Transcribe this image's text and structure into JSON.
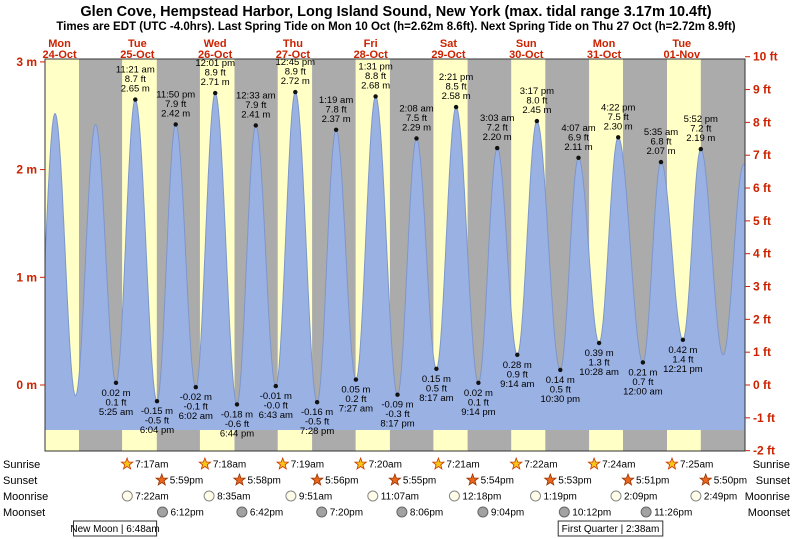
{
  "title": "Glen Cove, Hempstead Harbor, Long Island Sound, New York (max. tidal range 3.17m 10.4ft)",
  "subtitle": "Times are EDT (UTC -4.0hrs). Last Spring Tide on Mon 10 Oct (h=2.62m 8.6ft). Next Spring Tide on Thu 27 Oct (h=2.72m 8.9ft)",
  "colors": {
    "plot_bg": "#ababab",
    "daylight": "#ffffc6",
    "tide_fill": "#9ab1e4",
    "tide_stroke": "#7d97cb",
    "axis_text": "#cc2200",
    "day_text": "#cc2200",
    "sunrise_star": "#f6c51a",
    "sunrise_star_stroke": "#cc3300",
    "sunset_star": "#e8671c",
    "sunset_star_stroke": "#993300",
    "moonrise_fill": "#fffce8",
    "moonset_fill": "#a2a2a2"
  },
  "chart_data": {
    "type": "area",
    "x_axis": {
      "start_hour": 7.5,
      "end_hour": 223.5,
      "origin": "Mon 24-Oct 00:00 EDT"
    },
    "y_axis_left": {
      "unit": "m",
      "ticks": [
        0,
        1,
        2,
        3
      ]
    },
    "y_axis_right": {
      "unit": "ft",
      "ticks": [
        -2,
        -1,
        0,
        1,
        2,
        3,
        4,
        5,
        6,
        7,
        8,
        9,
        10
      ]
    },
    "days": [
      {
        "name": "Mon",
        "date": "24-Oct",
        "noon_hour": 12
      },
      {
        "name": "Tue",
        "date": "25-Oct",
        "noon_hour": 36
      },
      {
        "name": "Wed",
        "date": "26-Oct",
        "noon_hour": 60
      },
      {
        "name": "Thu",
        "date": "27-Oct",
        "noon_hour": 84
      },
      {
        "name": "Fri",
        "date": "28-Oct",
        "noon_hour": 108
      },
      {
        "name": "Sat",
        "date": "29-Oct",
        "noon_hour": 132
      },
      {
        "name": "Sun",
        "date": "30-Oct",
        "noon_hour": 156
      },
      {
        "name": "Mon",
        "date": "31-Oct",
        "noon_hour": 180
      },
      {
        "name": "Tue",
        "date": "01-Nov",
        "noon_hour": 204
      }
    ],
    "daylight_bands": [
      [
        7.5,
        18.0
      ],
      [
        31.283,
        41.983
      ],
      [
        55.3,
        65.967
      ],
      [
        79.317,
        89.933
      ],
      [
        103.333,
        113.917
      ],
      [
        127.35,
        137.9
      ],
      [
        151.367,
        161.883
      ],
      [
        175.4,
        185.85
      ],
      [
        199.417,
        209.833
      ],
      [
        223.43,
        223.5
      ]
    ],
    "tide_extremes": [
      {
        "hour": 29.417,
        "height_m": 0.02,
        "type": "low",
        "lines": [
          "0.02 m",
          "0.1 ft",
          "5:25 am"
        ]
      },
      {
        "hour": 35.35,
        "height_m": 2.65,
        "type": "high",
        "lines": [
          "11:21 am",
          "8.7 ft",
          "2.65 m"
        ]
      },
      {
        "hour": 42.067,
        "height_m": -0.15,
        "type": "low",
        "lines": [
          "-0.15 m",
          "-0.5 ft",
          "6:04 pm"
        ]
      },
      {
        "hour": 47.833,
        "height_m": 2.42,
        "type": "high",
        "lines": [
          "11:50 pm",
          "7.9 ft",
          "2.42 m"
        ]
      },
      {
        "hour": 54.033,
        "height_m": -0.02,
        "type": "low",
        "lines": [
          "-0.02 m",
          "-0.1 ft",
          "6:02 am"
        ]
      },
      {
        "hour": 60.017,
        "height_m": 2.71,
        "type": "high",
        "lines": [
          "12:01 pm",
          "8.9 ft",
          "2.71 m"
        ]
      },
      {
        "hour": 66.733,
        "height_m": -0.18,
        "type": "low",
        "lines": [
          "-0.18 m",
          "-0.6 ft",
          "6:44 pm"
        ]
      },
      {
        "hour": 72.55,
        "height_m": 2.41,
        "type": "high",
        "lines": [
          "12:33 am",
          "7.9 ft",
          "2.41 m"
        ]
      },
      {
        "hour": 78.717,
        "height_m": -0.01,
        "type": "low",
        "lines": [
          "-0.01 m",
          "-0.0 ft",
          "6:43 am"
        ]
      },
      {
        "hour": 84.75,
        "height_m": 2.72,
        "type": "high",
        "lines": [
          "12:45 pm",
          "8.9 ft",
          "2.72 m"
        ]
      },
      {
        "hour": 91.467,
        "height_m": -0.16,
        "type": "low",
        "lines": [
          "-0.16 m",
          "-0.5 ft",
          "7:28 pm"
        ]
      },
      {
        "hour": 97.317,
        "height_m": 2.37,
        "type": "high",
        "lines": [
          "1:19 am",
          "7.8 ft",
          "2.37 m"
        ]
      },
      {
        "hour": 103.45,
        "height_m": 0.05,
        "type": "low",
        "lines": [
          "0.05 m",
          "0.2 ft",
          "7:27 am"
        ]
      },
      {
        "hour": 109.517,
        "height_m": 2.68,
        "type": "high",
        "lines": [
          "1:31 pm",
          "8.8 ft",
          "2.68 m"
        ]
      },
      {
        "hour": 116.283,
        "height_m": -0.09,
        "type": "low",
        "lines": [
          "-0.09 m",
          "-0.3 ft",
          "8:17 pm"
        ]
      },
      {
        "hour": 122.133,
        "height_m": 2.29,
        "type": "high",
        "lines": [
          "2:08 am",
          "7.5 ft",
          "2.29 m"
        ]
      },
      {
        "hour": 128.283,
        "height_m": 0.15,
        "type": "low",
        "lines": [
          "0.15 m",
          "0.5 ft",
          "8:17 am"
        ]
      },
      {
        "hour": 134.35,
        "height_m": 2.58,
        "type": "high",
        "lines": [
          "2:21 pm",
          "8.5 ft",
          "2.58 m"
        ]
      },
      {
        "hour": 141.233,
        "height_m": 0.02,
        "type": "low",
        "lines": [
          "0.02 m",
          "0.1 ft",
          "9:14 pm"
        ]
      },
      {
        "hour": 147.05,
        "height_m": 2.2,
        "type": "high",
        "lines": [
          "3:03 am",
          "7.2 ft",
          "2.20 m"
        ]
      },
      {
        "hour": 153.233,
        "height_m": 0.28,
        "type": "low",
        "lines": [
          "0.28 m",
          "0.9 ft",
          "9:14 am"
        ]
      },
      {
        "hour": 159.283,
        "height_m": 2.45,
        "type": "high",
        "lines": [
          "3:17 pm",
          "8.0 ft",
          "2.45 m"
        ]
      },
      {
        "hour": 166.5,
        "height_m": 0.14,
        "type": "low",
        "lines": [
          "0.14 m",
          "0.5 ft",
          "10:30 pm"
        ]
      },
      {
        "hour": 172.117,
        "height_m": 2.11,
        "type": "high",
        "lines": [
          "4:07 am",
          "6.9 ft",
          "2.11 m"
        ]
      },
      {
        "hour": 178.467,
        "height_m": 0.39,
        "type": "low",
        "lines": [
          "0.39 m",
          "1.3 ft",
          "10:28 am"
        ]
      },
      {
        "hour": 184.367,
        "height_m": 2.3,
        "type": "high",
        "lines": [
          "4:22 pm",
          "7.5 ft",
          "2.30 m"
        ]
      },
      {
        "hour": 192.0,
        "height_m": 0.21,
        "type": "low",
        "lines": [
          "0.21 m",
          "0.7 ft",
          "12:00 am"
        ]
      },
      {
        "hour": 197.583,
        "height_m": 2.07,
        "type": "high",
        "lines": [
          "5:35 am",
          "6.8 ft",
          "2.07 m"
        ]
      },
      {
        "hour": 204.35,
        "height_m": 0.42,
        "type": "low",
        "lines": [
          "0.42 m",
          "1.4 ft",
          "12:21 pm"
        ]
      },
      {
        "hour": 209.867,
        "height_m": 2.19,
        "type": "high",
        "lines": [
          "5:52 pm",
          "7.2 ft",
          "2.19 m"
        ]
      }
    ],
    "edge_extremes": [
      {
        "hour": 4.833,
        "height_m": 0.05
      },
      {
        "hour": 10.583,
        "height_m": 2.52
      },
      {
        "hour": 16.917,
        "height_m": -0.1
      },
      {
        "hour": 23.083,
        "height_m": 2.42
      },
      {
        "hour": 216.75,
        "height_m": 0.28
      },
      {
        "hour": 223.083,
        "height_m": 2.05
      },
      {
        "hour": 229.3,
        "height_m": 0.35
      }
    ],
    "astro_rows": [
      {
        "id": "sunrise",
        "label": "Sunrise",
        "events": [
          {
            "hour": 31.283,
            "time": "7:17am"
          },
          {
            "hour": 55.3,
            "time": "7:18am"
          },
          {
            "hour": 79.317,
            "time": "7:19am"
          },
          {
            "hour": 103.333,
            "time": "7:20am"
          },
          {
            "hour": 127.35,
            "time": "7:21am"
          },
          {
            "hour": 151.367,
            "time": "7:22am"
          },
          {
            "hour": 175.4,
            "time": "7:24am"
          },
          {
            "hour": 199.417,
            "time": "7:25am"
          }
        ]
      },
      {
        "id": "sunset",
        "label": "Sunset",
        "events": [
          {
            "hour": 41.983,
            "time": "5:59pm"
          },
          {
            "hour": 65.967,
            "time": "5:58pm"
          },
          {
            "hour": 89.933,
            "time": "5:56pm"
          },
          {
            "hour": 113.917,
            "time": "5:55pm"
          },
          {
            "hour": 137.9,
            "time": "5:54pm"
          },
          {
            "hour": 161.883,
            "time": "5:53pm"
          },
          {
            "hour": 185.85,
            "time": "5:51pm"
          },
          {
            "hour": 209.833,
            "time": "5:50pm"
          }
        ]
      },
      {
        "id": "moonrise",
        "label": "Moonrise",
        "events": [
          {
            "hour": 31.367,
            "time": "7:22am"
          },
          {
            "hour": 56.583,
            "time": "8:35am"
          },
          {
            "hour": 81.85,
            "time": "9:51am"
          },
          {
            "hour": 107.117,
            "time": "11:07am"
          },
          {
            "hour": 132.3,
            "time": "12:18pm"
          },
          {
            "hour": 157.317,
            "time": "1:19pm"
          },
          {
            "hour": 182.15,
            "time": "2:09pm"
          },
          {
            "hour": 206.817,
            "time": "2:49pm"
          }
        ]
      },
      {
        "id": "moonset",
        "label": "Moonset",
        "events": [
          {
            "hour": 42.2,
            "time": "6:12pm"
          },
          {
            "hour": 66.7,
            "time": "6:42pm"
          },
          {
            "hour": 91.333,
            "time": "7:20pm"
          },
          {
            "hour": 116.1,
            "time": "8:06pm"
          },
          {
            "hour": 141.067,
            "time": "9:04pm"
          },
          {
            "hour": 166.2,
            "time": "10:12pm"
          },
          {
            "hour": 191.433,
            "time": "11:26pm"
          }
        ]
      }
    ],
    "moon_phases": [
      {
        "label": "New Moon | 6:48am",
        "hour": 29.1
      },
      {
        "label": "First Quarter | 2:38am",
        "hour": 182
      }
    ]
  }
}
